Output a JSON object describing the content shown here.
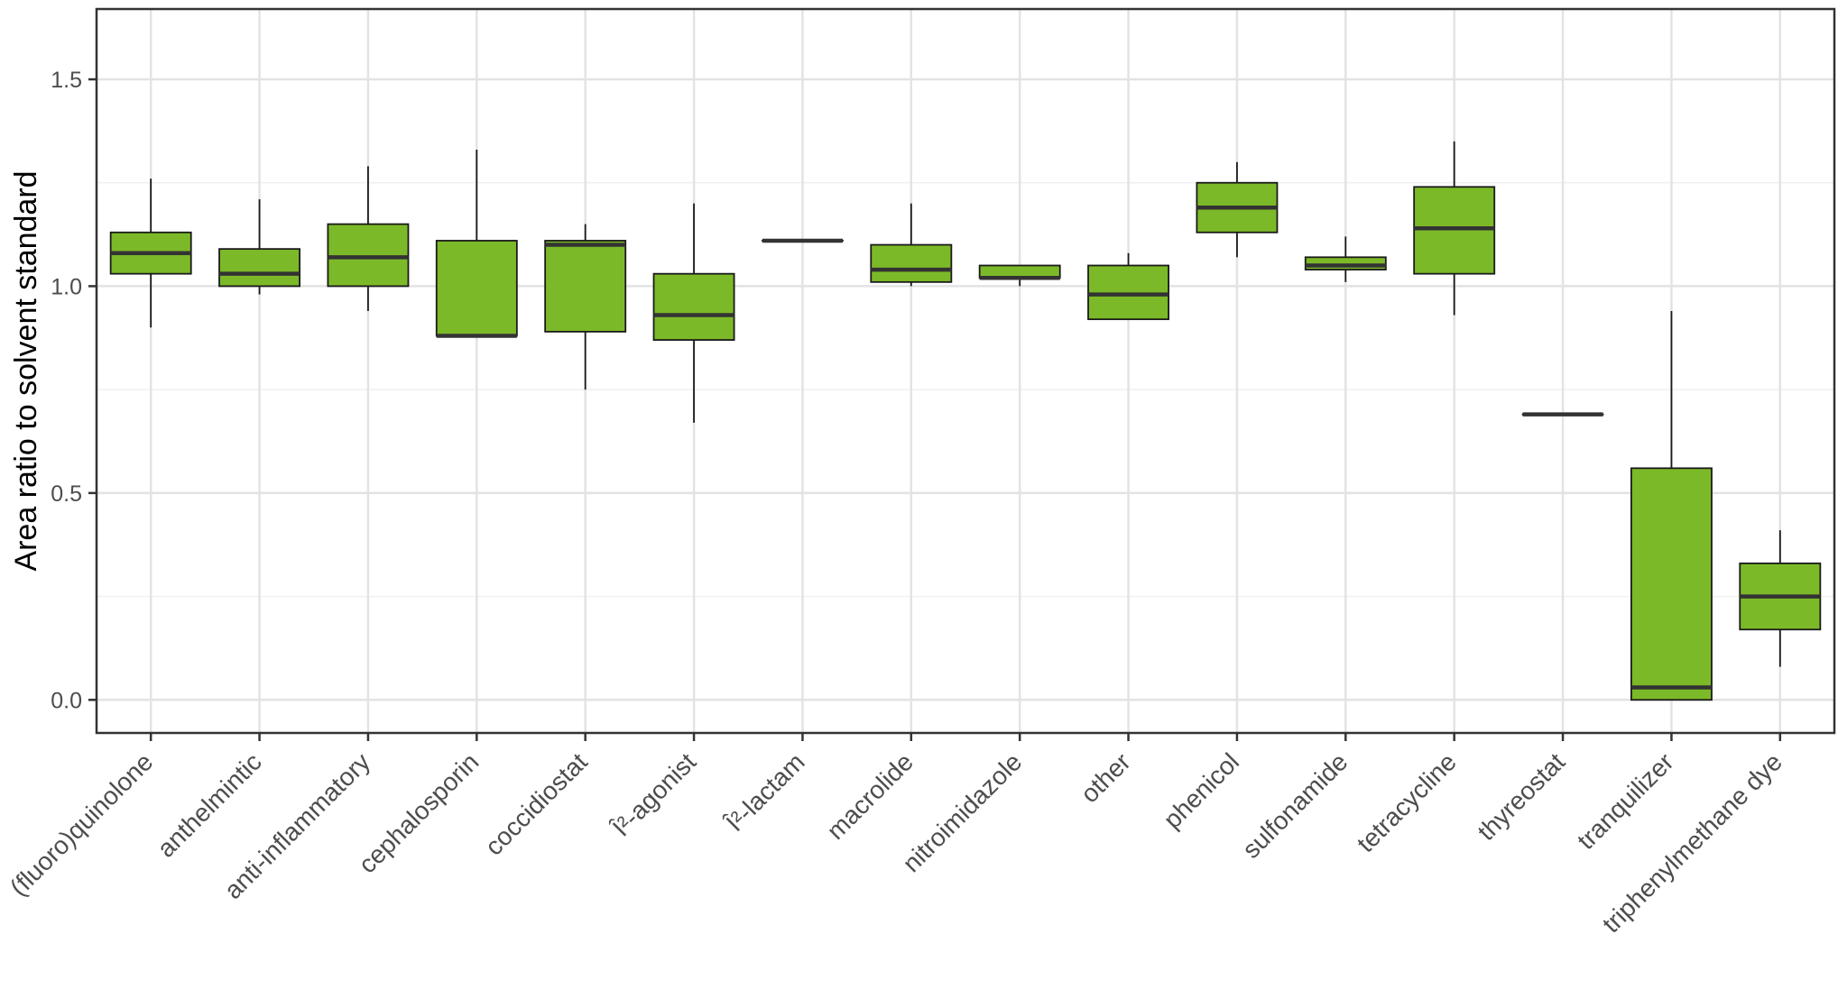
{
  "chart_data": {
    "type": "box",
    "title": "",
    "xlabel": "",
    "ylabel": "Area ratio to solvent standard",
    "ylim": [
      -0.08,
      1.67
    ],
    "yticks": [
      0.0,
      0.5,
      1.0,
      1.5
    ],
    "ytick_labels": [
      "0.0",
      "0.5",
      "1.0",
      "1.5"
    ],
    "grid": true,
    "legend": "none",
    "box_fill": "#7cb928",
    "box_stroke": "#1a1a1a",
    "categories": [
      "(fluoro)quinolone",
      "anthelmintic",
      "anti-inflammatory",
      "cephalosporin",
      "coccidiostat",
      "Î²-agonist",
      "Î²-lactam",
      "macrolide",
      "nitroimidazole",
      "other",
      "phenicol",
      "sulfonamide",
      "tetracycline",
      "thyreostat",
      "tranquilizer",
      "triphenylmethane dye"
    ],
    "boxes": [
      {
        "min": 0.9,
        "q1": 1.03,
        "median": 1.08,
        "q3": 1.13,
        "max": 1.26
      },
      {
        "min": 0.98,
        "q1": 1.0,
        "median": 1.03,
        "q3": 1.09,
        "max": 1.21
      },
      {
        "min": 0.94,
        "q1": 1.0,
        "median": 1.07,
        "q3": 1.15,
        "max": 1.29
      },
      {
        "min": 0.88,
        "q1": 0.88,
        "median": 0.88,
        "q3": 1.11,
        "max": 1.33
      },
      {
        "min": 0.75,
        "q1": 0.89,
        "median": 1.1,
        "q3": 1.11,
        "max": 1.15
      },
      {
        "min": 0.67,
        "q1": 0.87,
        "median": 0.93,
        "q3": 1.03,
        "max": 1.2
      },
      {
        "min": 1.11,
        "q1": 1.11,
        "median": 1.11,
        "q3": 1.11,
        "max": 1.11
      },
      {
        "min": 1.0,
        "q1": 1.01,
        "median": 1.04,
        "q3": 1.1,
        "max": 1.2
      },
      {
        "min": 1.0,
        "q1": 1.02,
        "median": 1.02,
        "q3": 1.05,
        "max": 1.05
      },
      {
        "min": 0.92,
        "q1": 0.92,
        "median": 0.98,
        "q3": 1.05,
        "max": 1.08
      },
      {
        "min": 1.07,
        "q1": 1.13,
        "median": 1.19,
        "q3": 1.25,
        "max": 1.3
      },
      {
        "min": 1.01,
        "q1": 1.04,
        "median": 1.05,
        "q3": 1.07,
        "max": 1.12
      },
      {
        "min": 0.93,
        "q1": 1.03,
        "median": 1.14,
        "q3": 1.24,
        "max": 1.35
      },
      {
        "min": 0.69,
        "q1": 0.69,
        "median": 0.69,
        "q3": 0.69,
        "max": 0.69
      },
      {
        "min": 0.0,
        "q1": 0.0,
        "median": 0.03,
        "q3": 0.56,
        "max": 0.94
      },
      {
        "min": 0.08,
        "q1": 0.17,
        "median": 0.25,
        "q3": 0.33,
        "max": 0.41
      }
    ]
  }
}
